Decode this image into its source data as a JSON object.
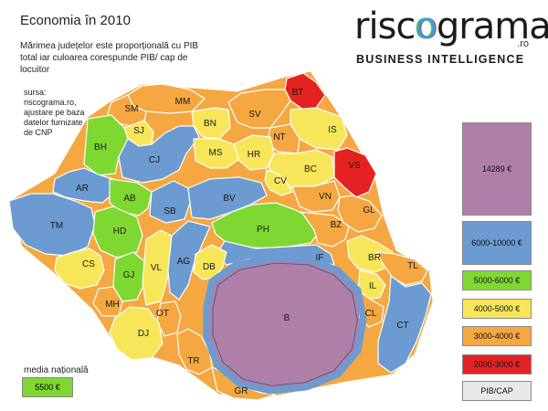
{
  "header": {
    "title": "Economia în 2010",
    "subtitle": "Mărimea județelor este proporțională cu PIB total iar culoarea corespunde PIB/ cap de locuitor",
    "source": "sursa: riscograma.ro, ajustare pe baza datelor furnizate de CNP"
  },
  "logo": {
    "word": "riscogram",
    "word_o": "o",
    "word_end": "a",
    "domain": ".ro",
    "tagline": "BUSINESS INTELLIGENCE",
    "colors": {
      "r": "#e22b2b",
      "o": "#3aa0d8",
      "g": "#7ed13c"
    }
  },
  "legend": {
    "items": [
      {
        "label": "14289 €",
        "color": "#b07fa8"
      },
      {
        "label": "6000-10000 €",
        "color": "#6b9bd0"
      },
      {
        "label": "5000-6000 €",
        "color": "#7fd832"
      },
      {
        "label": "4000-5000 €",
        "color": "#f7e65a"
      },
      {
        "label": "3000-4000 €",
        "color": "#f5a742"
      },
      {
        "label": "2000-3000 €",
        "color": "#e52222"
      },
      {
        "label": "PIB/CAP",
        "color": "#e8e8e8"
      }
    ]
  },
  "average": {
    "label": "media națională",
    "value": "5500 €",
    "color": "#7fd832"
  },
  "counties": [
    {
      "code": "BT",
      "cls": "2000-3000"
    },
    {
      "code": "MM",
      "cls": "3000-4000"
    },
    {
      "code": "SM",
      "cls": "3000-4000"
    },
    {
      "code": "SV",
      "cls": "3000-4000"
    },
    {
      "code": "SJ",
      "cls": "4000-5000"
    },
    {
      "code": "BN",
      "cls": "4000-5000"
    },
    {
      "code": "IS",
      "cls": "4000-5000"
    },
    {
      "code": "BH",
      "cls": "5000-6000"
    },
    {
      "code": "NT",
      "cls": "3000-4000"
    },
    {
      "code": "CJ",
      "cls": "6000-10000"
    },
    {
      "code": "MS",
      "cls": "4000-5000"
    },
    {
      "code": "HR",
      "cls": "4000-5000"
    },
    {
      "code": "BC",
      "cls": "4000-5000"
    },
    {
      "code": "VS",
      "cls": "2000-3000"
    },
    {
      "code": "AR",
      "cls": "6000-10000"
    },
    {
      "code": "CV",
      "cls": "4000-5000"
    },
    {
      "code": "AB",
      "cls": "5000-6000"
    },
    {
      "code": "SB",
      "cls": "6000-10000"
    },
    {
      "code": "BV",
      "cls": "6000-10000"
    },
    {
      "code": "VN",
      "cls": "3000-4000"
    },
    {
      "code": "GL",
      "cls": "3000-4000"
    },
    {
      "code": "TM",
      "cls": "6000-10000"
    },
    {
      "code": "PH",
      "cls": "5000-6000"
    },
    {
      "code": "BZ",
      "cls": "3000-4000"
    },
    {
      "code": "HD",
      "cls": "5000-6000"
    },
    {
      "code": "IF",
      "cls": "6000-10000"
    },
    {
      "code": "BR",
      "cls": "4000-5000"
    },
    {
      "code": "CS",
      "cls": "4000-5000"
    },
    {
      "code": "TL",
      "cls": "3000-4000"
    },
    {
      "code": "GJ",
      "cls": "5000-6000"
    },
    {
      "code": "VL",
      "cls": "4000-5000"
    },
    {
      "code": "AG",
      "cls": "6000-10000"
    },
    {
      "code": "DB",
      "cls": "4000-5000"
    },
    {
      "code": "IL",
      "cls": "4000-5000"
    },
    {
      "code": "MH",
      "cls": "3000-4000"
    },
    {
      "code": "OT",
      "cls": "3000-4000"
    },
    {
      "code": "B",
      "cls": "14289"
    },
    {
      "code": "CL",
      "cls": "3000-4000"
    },
    {
      "code": "DJ",
      "cls": "4000-5000"
    },
    {
      "code": "CT",
      "cls": "6000-10000"
    },
    {
      "code": "TR",
      "cls": "3000-4000"
    },
    {
      "code": "GR",
      "cls": "3000-4000"
    }
  ]
}
